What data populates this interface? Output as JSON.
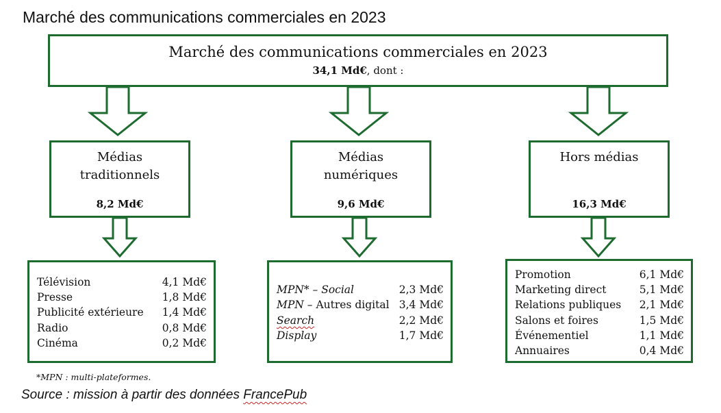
{
  "page_title": "Marché des communications commerciales en 2023",
  "top_box": {
    "title": "Marché des communications commerciales en 2023",
    "total": "34,1 Md€",
    "suffix": ", dont :"
  },
  "categories": [
    {
      "name_line1": "Médias",
      "name_line2": "traditionnels",
      "value": "8,2 Md€",
      "items": [
        {
          "label": "Télévision",
          "value": "4,1 Md€"
        },
        {
          "label": "Presse",
          "value": "1,8 Md€"
        },
        {
          "label": "Publicité extérieure",
          "value": "1,4 Md€"
        },
        {
          "label": "Radio",
          "value": "0,8 Md€"
        },
        {
          "label": "Cinéma",
          "value": "0,2 Md€"
        }
      ]
    },
    {
      "name_line1": "Médias",
      "name_line2": "numériques",
      "value": "9,6 Md€",
      "items": [
        {
          "label": "MPN* – Social",
          "value": "2,3 Md€"
        },
        {
          "label_part1": "MPN",
          "label_part2": " – Autres digital",
          "value": "3,4 Md€"
        },
        {
          "label": "Search",
          "value": "2,2 Md€"
        },
        {
          "label": "Display",
          "value": "1,7 Md€"
        }
      ]
    },
    {
      "name_line1": "Hors médias",
      "name_line2": "",
      "value": "16,3 Md€",
      "items": [
        {
          "label": "Promotion",
          "value": "6,1 Md€"
        },
        {
          "label": "Marketing direct",
          "value": "5,1 Md€"
        },
        {
          "label": "Relations publiques",
          "value": "2,1 Md€"
        },
        {
          "label": "Salons et foires",
          "value": "1,5 Md€"
        },
        {
          "label": "Événementiel",
          "value": "1,1 Md€"
        },
        {
          "label": "Annuaires",
          "value": "0,4 Md€"
        }
      ]
    }
  ],
  "footnote": "*MPN : multi-plateformes.",
  "source": {
    "prefix": "Source : mission à partir des données ",
    "name": "FrancePub"
  },
  "colors": {
    "border": "#1e6b30"
  }
}
